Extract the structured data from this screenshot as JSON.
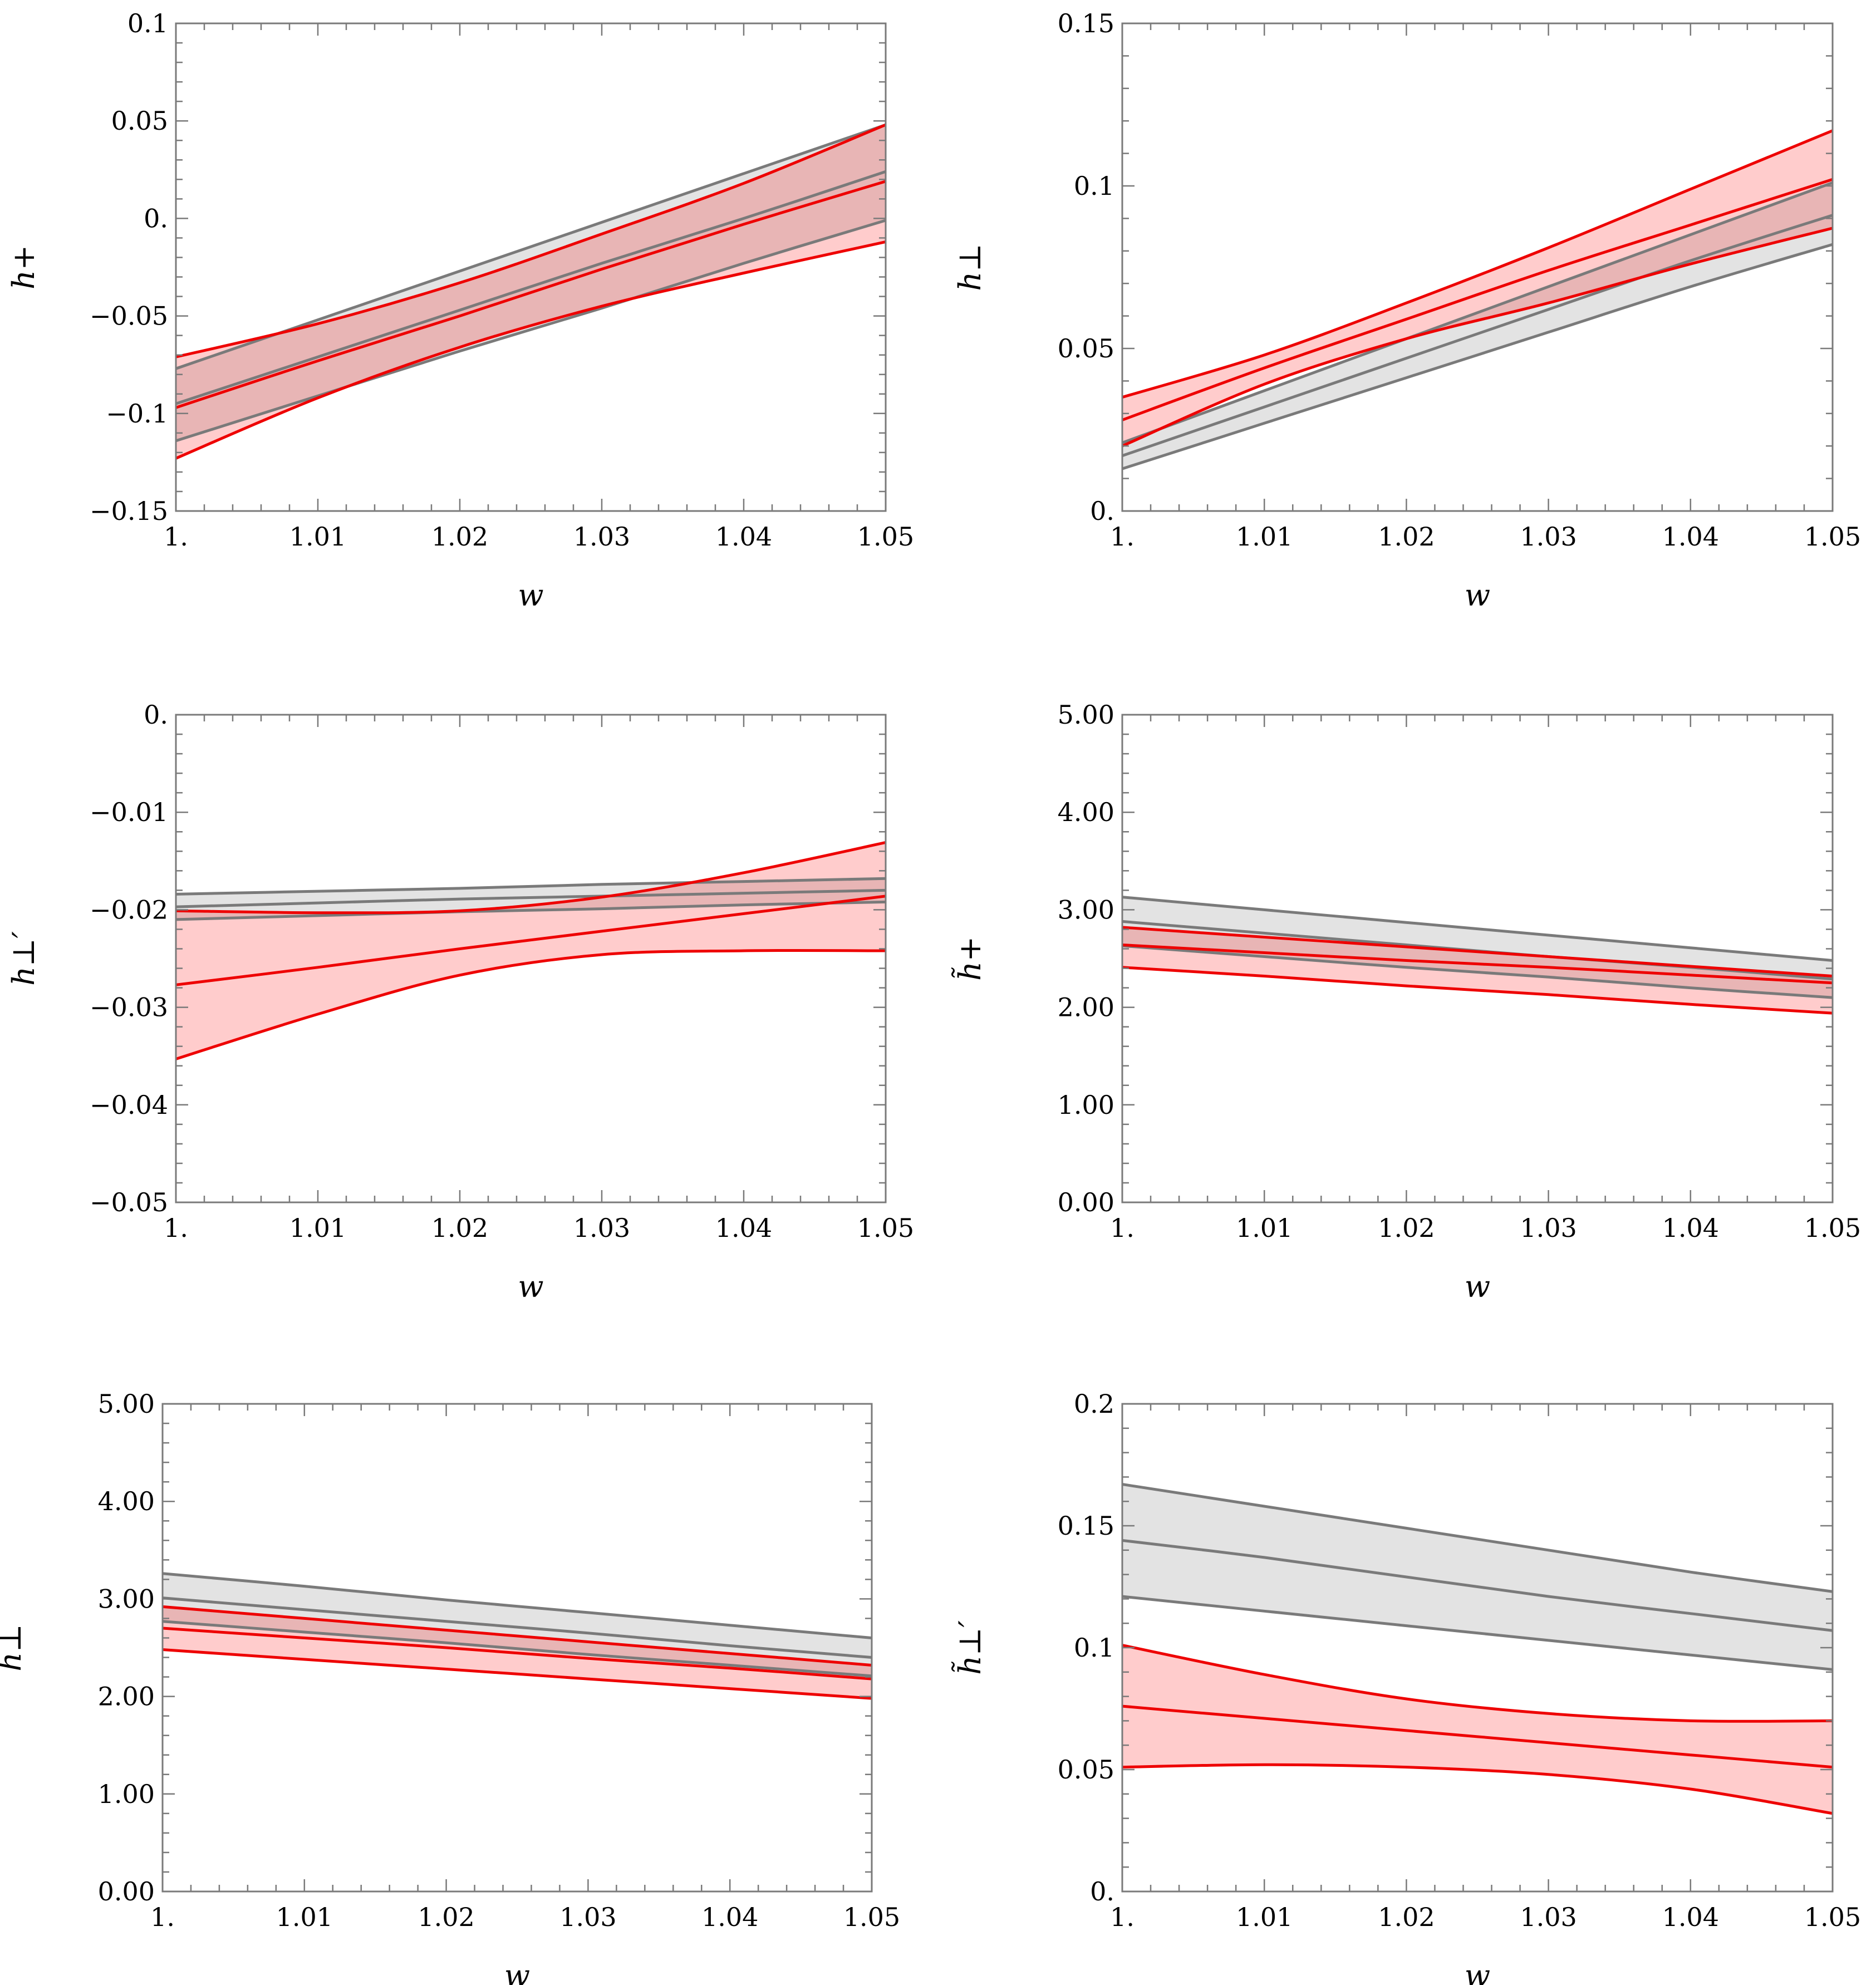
{
  "chart_data": [
    {
      "type": "line",
      "ylabel": "h+",
      "xlabel": "w",
      "xlim": [
        1.0,
        1.05
      ],
      "ylim": [
        -0.15,
        0.1
      ],
      "xticks": [
        "1.",
        "1.01",
        "1.02",
        "1.03",
        "1.04",
        "1.05"
      ],
      "yticks": [
        "-0.15",
        "-0.1",
        "-0.05",
        "0.",
        "0.05",
        "0.1"
      ],
      "ytick_values": [
        -0.15,
        -0.1,
        -0.05,
        0.0,
        0.05,
        0.1
      ],
      "x": [
        1.0,
        1.01,
        1.02,
        1.03,
        1.04,
        1.05
      ],
      "series": [
        {
          "name": "gray band",
          "color": "#7a7a7a",
          "central": [
            -0.095,
            -0.071,
            -0.047,
            -0.023,
            0.0,
            0.024
          ],
          "upper": [
            -0.077,
            -0.052,
            -0.027,
            -0.002,
            0.023,
            0.048
          ],
          "lower": [
            -0.114,
            -0.091,
            -0.068,
            -0.046,
            -0.023,
            -0.001
          ]
        },
        {
          "name": "red band",
          "color": "#ee0000",
          "central": [
            -0.097,
            -0.073,
            -0.05,
            -0.026,
            -0.003,
            0.019
          ],
          "upper": [
            -0.071,
            -0.054,
            -0.033,
            -0.008,
            0.018,
            0.048
          ],
          "lower": [
            -0.123,
            -0.092,
            -0.066,
            -0.045,
            -0.028,
            -0.012
          ]
        }
      ]
    },
    {
      "type": "line",
      "ylabel": "h⊥",
      "xlabel": "w",
      "xlim": [
        1.0,
        1.05
      ],
      "ylim": [
        0.0,
        0.15
      ],
      "xticks": [
        "1.",
        "1.01",
        "1.02",
        "1.03",
        "1.04",
        "1.05"
      ],
      "yticks": [
        "0.",
        "0.05",
        "0.1",
        "0.15"
      ],
      "ytick_values": [
        0.0,
        0.05,
        0.1,
        0.15
      ],
      "x": [
        1.0,
        1.01,
        1.02,
        1.03,
        1.04,
        1.05
      ],
      "series": [
        {
          "name": "gray band",
          "color": "#7a7a7a",
          "central": [
            0.017,
            0.032,
            0.047,
            0.062,
            0.077,
            0.091
          ],
          "upper": [
            0.021,
            0.037,
            0.053,
            0.069,
            0.085,
            0.101
          ],
          "lower": [
            0.013,
            0.027,
            0.041,
            0.055,
            0.069,
            0.082
          ]
        },
        {
          "name": "red band",
          "color": "#ee0000",
          "central": [
            0.028,
            0.044,
            0.059,
            0.074,
            0.088,
            0.102
          ],
          "upper": [
            0.035,
            0.048,
            0.064,
            0.081,
            0.099,
            0.117
          ],
          "lower": [
            0.02,
            0.039,
            0.053,
            0.064,
            0.076,
            0.087
          ]
        }
      ]
    },
    {
      "type": "line",
      "ylabel": "h⊥′",
      "xlabel": "w",
      "xlim": [
        1.0,
        1.05
      ],
      "ylim": [
        -0.05,
        0.0
      ],
      "xticks": [
        "1.",
        "1.01",
        "1.02",
        "1.03",
        "1.04",
        "1.05"
      ],
      "yticks": [
        "-0.05",
        "-0.04",
        "-0.03",
        "-0.02",
        "-0.01",
        "0."
      ],
      "ytick_values": [
        -0.05,
        -0.04,
        -0.03,
        -0.02,
        -0.01,
        0.0
      ],
      "x": [
        1.0,
        1.01,
        1.02,
        1.03,
        1.04,
        1.05
      ],
      "series": [
        {
          "name": "gray band",
          "color": "#7a7a7a",
          "central": [
            -0.0197,
            -0.0193,
            -0.0189,
            -0.0186,
            -0.0183,
            -0.018
          ],
          "upper": [
            -0.0184,
            -0.0181,
            -0.0178,
            -0.0174,
            -0.0171,
            -0.0168
          ],
          "lower": [
            -0.021,
            -0.0206,
            -0.0202,
            -0.0199,
            -0.0195,
            -0.0192
          ]
        },
        {
          "name": "red band",
          "color": "#ee0000",
          "central": [
            -0.0277,
            -0.0259,
            -0.024,
            -0.0222,
            -0.0204,
            -0.0186
          ],
          "upper": [
            -0.0201,
            -0.0203,
            -0.0201,
            -0.0187,
            -0.0162,
            -0.0131
          ],
          "lower": [
            -0.0353,
            -0.0307,
            -0.0267,
            -0.0246,
            -0.0242,
            -0.0242
          ]
        }
      ]
    },
    {
      "type": "line",
      "ylabel": "h̃+",
      "xlabel": "w",
      "xlim": [
        1.0,
        1.05
      ],
      "ylim": [
        0.0,
        5.0
      ],
      "xticks": [
        "1.",
        "1.01",
        "1.02",
        "1.03",
        "1.04",
        "1.05"
      ],
      "yticks": [
        "0.00",
        "1.00",
        "2.00",
        "3.00",
        "4.00",
        "5.00"
      ],
      "ytick_values": [
        0.0,
        1.0,
        2.0,
        3.0,
        4.0,
        5.0
      ],
      "x": [
        1.0,
        1.01,
        1.02,
        1.03,
        1.04,
        1.05
      ],
      "series": [
        {
          "name": "gray band",
          "color": "#7a7a7a",
          "central": [
            2.88,
            2.76,
            2.64,
            2.52,
            2.41,
            2.29
          ],
          "upper": [
            3.13,
            3.0,
            2.87,
            2.74,
            2.61,
            2.48
          ],
          "lower": [
            2.63,
            2.52,
            2.41,
            2.31,
            2.2,
            2.1
          ]
        },
        {
          "name": "red band",
          "color": "#ee0000",
          "central": [
            2.64,
            2.56,
            2.48,
            2.41,
            2.33,
            2.25
          ],
          "upper": [
            2.82,
            2.72,
            2.62,
            2.52,
            2.42,
            2.32
          ],
          "lower": [
            2.41,
            2.32,
            2.22,
            2.13,
            2.03,
            1.94
          ]
        }
      ]
    },
    {
      "type": "line",
      "ylabel": "h̃⊥",
      "xlabel": "w",
      "xlim": [
        1.0,
        1.05
      ],
      "ylim": [
        0.0,
        5.0
      ],
      "xticks": [
        "1.",
        "1.01",
        "1.02",
        "1.03",
        "1.04",
        "1.05"
      ],
      "yticks": [
        "0.00",
        "1.00",
        "2.00",
        "3.00",
        "4.00",
        "5.00"
      ],
      "ytick_values": [
        0.0,
        1.0,
        2.0,
        3.0,
        4.0,
        5.0
      ],
      "x": [
        1.0,
        1.01,
        1.02,
        1.03,
        1.04,
        1.05
      ],
      "series": [
        {
          "name": "gray band",
          "color": "#7a7a7a",
          "central": [
            3.01,
            2.89,
            2.77,
            2.65,
            2.52,
            2.4
          ],
          "upper": [
            3.26,
            3.13,
            2.99,
            2.86,
            2.73,
            2.6
          ],
          "lower": [
            2.77,
            2.66,
            2.55,
            2.43,
            2.32,
            2.21
          ]
        },
        {
          "name": "red band",
          "color": "#ee0000",
          "central": [
            2.7,
            2.6,
            2.5,
            2.39,
            2.29,
            2.18
          ],
          "upper": [
            2.92,
            2.8,
            2.68,
            2.56,
            2.44,
            2.32
          ],
          "lower": [
            2.48,
            2.38,
            2.28,
            2.18,
            2.08,
            1.98
          ]
        }
      ]
    },
    {
      "type": "line",
      "ylabel": "h̃⊥′",
      "xlabel": "w",
      "xlim": [
        1.0,
        1.05
      ],
      "ylim": [
        0.0,
        0.2
      ],
      "xticks": [
        "1.",
        "1.01",
        "1.02",
        "1.03",
        "1.04",
        "1.05"
      ],
      "yticks": [
        "0.",
        "0.05",
        "0.1",
        "0.15",
        "0.2"
      ],
      "ytick_values": [
        0.0,
        0.05,
        0.1,
        0.15,
        0.2
      ],
      "x": [
        1.0,
        1.01,
        1.02,
        1.03,
        1.04,
        1.05
      ],
      "series": [
        {
          "name": "gray band",
          "color": "#7a7a7a",
          "central": [
            0.144,
            0.137,
            0.129,
            0.121,
            0.114,
            0.107
          ],
          "upper": [
            0.167,
            0.158,
            0.149,
            0.14,
            0.131,
            0.123
          ],
          "lower": [
            0.121,
            0.115,
            0.109,
            0.103,
            0.097,
            0.091
          ]
        },
        {
          "name": "red band",
          "color": "#ee0000",
          "central": [
            0.076,
            0.071,
            0.066,
            0.061,
            0.056,
            0.051
          ],
          "upper": [
            0.101,
            0.089,
            0.079,
            0.073,
            0.07,
            0.07
          ],
          "lower": [
            0.051,
            0.052,
            0.051,
            0.048,
            0.042,
            0.032
          ]
        }
      ]
    }
  ]
}
